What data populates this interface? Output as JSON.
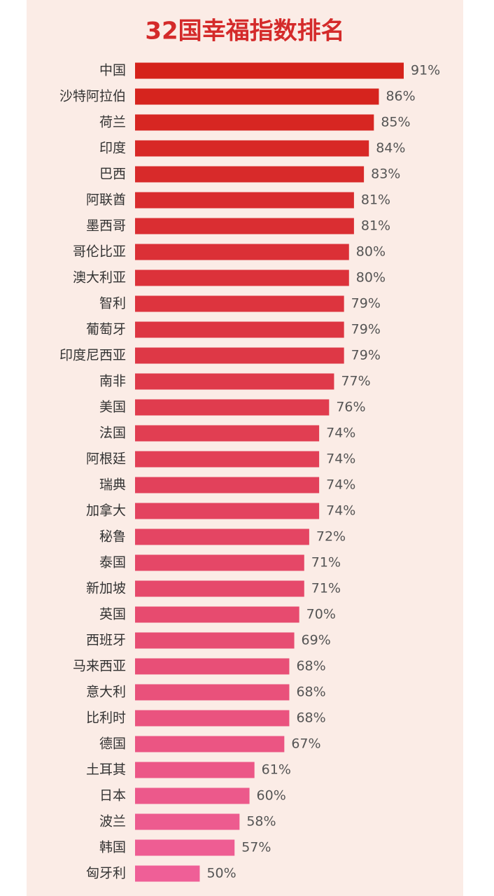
{
  "chart_data": {
    "type": "hbar",
    "title": "32国幸福指数排名",
    "categories": [
      "中国",
      "沙特阿拉伯",
      "荷兰",
      "印度",
      "巴西",
      "阿联酋",
      "墨西哥",
      "哥伦比亚",
      "澳大利亚",
      "智利",
      "葡萄牙",
      "印度尼西亚",
      "南非",
      "美国",
      "法国",
      "阿根廷",
      "瑞典",
      "加拿大",
      "秘鲁",
      "泰国",
      "新加坡",
      "英国",
      "西班牙",
      "马来西亚",
      "意大利",
      "比利时",
      "德国",
      "土耳其",
      "日本",
      "波兰",
      "韩国",
      "匈牙利"
    ],
    "values": [
      91,
      86,
      85,
      84,
      83,
      81,
      81,
      80,
      80,
      79,
      79,
      79,
      77,
      76,
      74,
      74,
      74,
      74,
      72,
      71,
      71,
      70,
      69,
      68,
      68,
      68,
      67,
      61,
      60,
      58,
      57,
      50
    ],
    "value_labels": [
      "91%",
      "86%",
      "85%",
      "84%",
      "83%",
      "81%",
      "81%",
      "80%",
      "80%",
      "79%",
      "79%",
      "79%",
      "77%",
      "76%",
      "74%",
      "74%",
      "74%",
      "74%",
      "72%",
      "71%",
      "71%",
      "70%",
      "69%",
      "68%",
      "68%",
      "68%",
      "67%",
      "61%",
      "60%",
      "58%",
      "57%",
      "50%"
    ],
    "xlim": [
      37,
      91
    ],
    "gradient": [
      "#d5221a",
      "#ef5f97"
    ]
  }
}
